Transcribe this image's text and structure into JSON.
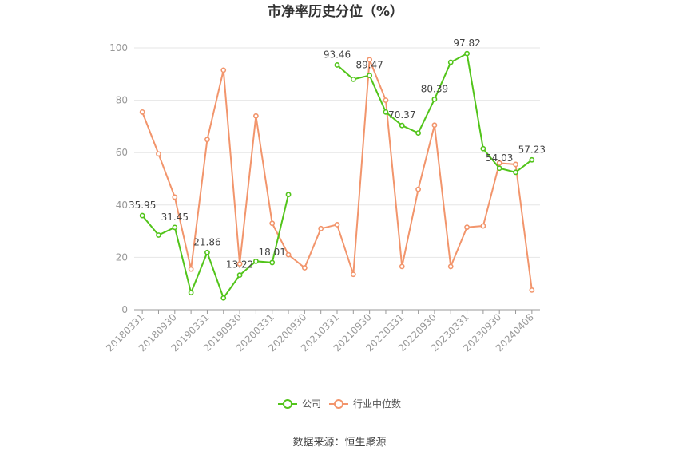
{
  "chart_data": {
    "type": "line",
    "title": "市净率历史分位（%）",
    "source": "数据来源：恒生聚源",
    "ylim": [
      0,
      100
    ],
    "yticks": [
      0,
      20,
      40,
      60,
      80,
      100
    ],
    "grid": true,
    "legend_position": "bottom",
    "x_tick_labels": [
      "20180331",
      "20180930",
      "20190331",
      "20190930",
      "20200331",
      "20200930",
      "20210331",
      "20210930",
      "20220331",
      "20220930",
      "20230331",
      "20230930",
      "20240408"
    ],
    "x": [
      "20180331",
      "20180630",
      "20180930",
      "20181231",
      "20190331",
      "20190630",
      "20190930",
      "20191231",
      "20200331",
      "20200630",
      "20200930",
      "20201231",
      "20210331",
      "20210630",
      "20210930",
      "20211231",
      "20220331",
      "20220630",
      "20220930",
      "20221231",
      "20230331",
      "20230630",
      "20230930",
      "20231231",
      "20240408"
    ],
    "series": [
      {
        "name": "公司",
        "color": "#52c41a",
        "values": [
          35.95,
          28.5,
          31.45,
          6.5,
          21.86,
          4.5,
          13.22,
          18.5,
          18.01,
          44.0,
          null,
          null,
          93.46,
          88.0,
          89.47,
          75.5,
          70.37,
          67.5,
          80.39,
          94.5,
          97.82,
          61.5,
          54.03,
          52.5,
          57.23
        ]
      },
      {
        "name": "行业中位数",
        "color": "#f2956c",
        "values": [
          75.5,
          59.5,
          43.0,
          15.5,
          65.0,
          91.5,
          17.5,
          74.0,
          33.0,
          21.0,
          16.0,
          31.0,
          32.5,
          13.5,
          95.5,
          80.0,
          16.5,
          46.0,
          70.5,
          16.5,
          31.5,
          32.0,
          56.0,
          55.5,
          7.5
        ]
      }
    ],
    "data_labels": [
      {
        "series": 0,
        "index": 0,
        "text": "35.95"
      },
      {
        "series": 0,
        "index": 2,
        "text": "31.45"
      },
      {
        "series": 0,
        "index": 4,
        "text": "21.86"
      },
      {
        "series": 0,
        "index": 6,
        "text": "13.22"
      },
      {
        "series": 0,
        "index": 8,
        "text": "18.01"
      },
      {
        "series": 0,
        "index": 12,
        "text": "93.46"
      },
      {
        "series": 0,
        "index": 14,
        "text": "89.47"
      },
      {
        "series": 0,
        "index": 16,
        "text": "70.37"
      },
      {
        "series": 0,
        "index": 18,
        "text": "80.39"
      },
      {
        "series": 0,
        "index": 20,
        "text": "97.82"
      },
      {
        "series": 0,
        "index": 22,
        "text": "54.03"
      },
      {
        "series": 0,
        "index": 24,
        "text": "57.23"
      }
    ]
  }
}
